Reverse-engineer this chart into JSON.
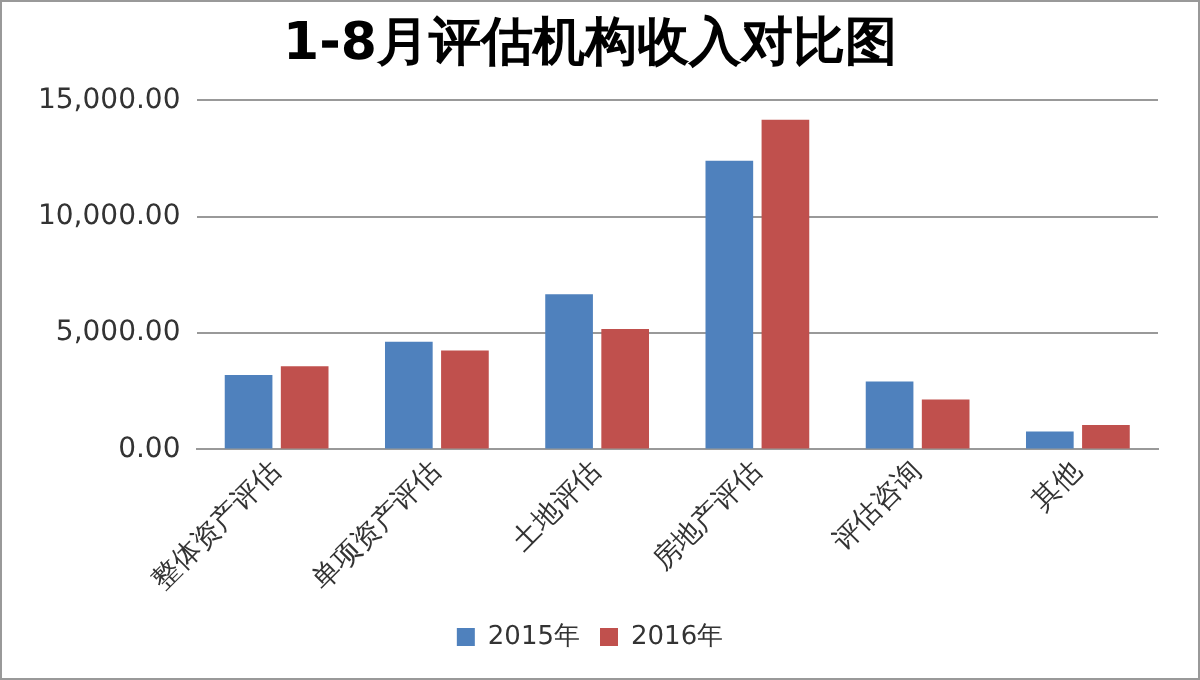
{
  "chart_data": {
    "type": "bar",
    "title": "1-8月评估机构收入对比图",
    "categories": [
      "整体资产评估",
      "单项资产评估",
      "土地评估",
      "房地产评估",
      "评估咨询",
      "其他"
    ],
    "series": [
      {
        "name": "2015年",
        "color": "#4f81bd",
        "values": [
          3200,
          4630,
          6670,
          12410,
          2920,
          770
        ]
      },
      {
        "name": "2016年",
        "color": "#c0504d",
        "values": [
          3580,
          4250,
          5180,
          14170,
          2150,
          1050
        ]
      }
    ],
    "ylim": [
      0,
      15000
    ],
    "yticks": [
      {
        "value": 0,
        "label": "0.00"
      },
      {
        "value": 5000,
        "label": "5,000.00"
      },
      {
        "value": 10000,
        "label": "10,000.00"
      },
      {
        "value": 15000,
        "label": "15,000.00"
      }
    ],
    "grid": "y",
    "legend": "bottom"
  }
}
